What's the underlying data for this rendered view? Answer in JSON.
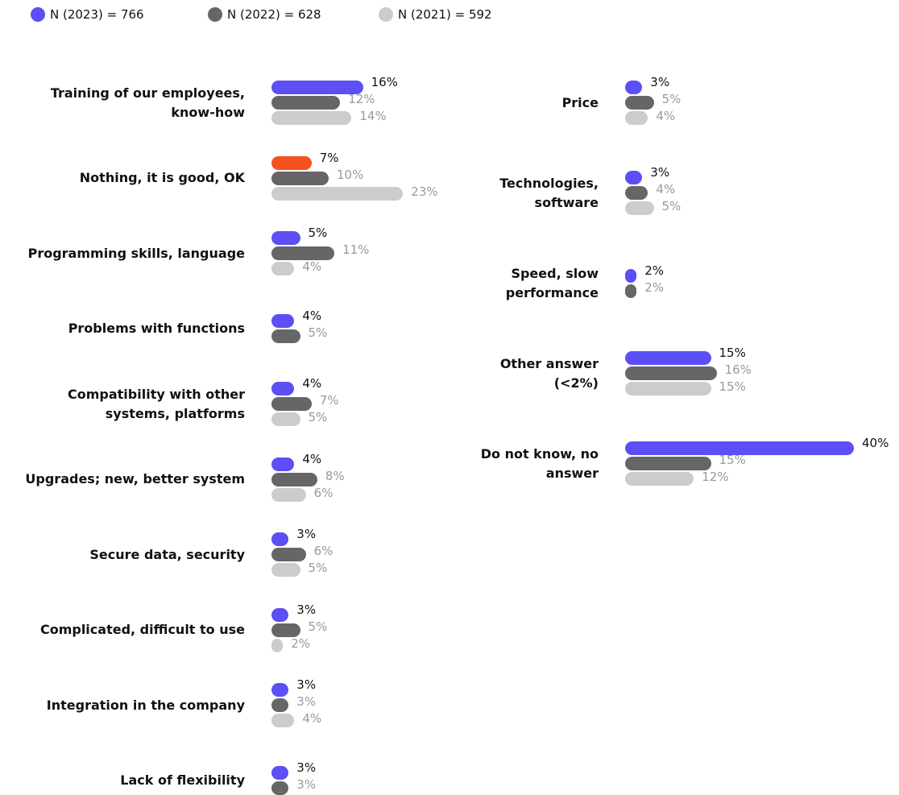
{
  "chart_data": [
    {
      "type": "bar",
      "categories": [
        "Training of our employees,\nknow-how",
        "Nothing, it is good, OK",
        "Programming skills, language",
        "Problems with functions",
        "Compatibility with other\nsystems, platforms",
        "Upgrades; new, better system",
        "Secure data, security",
        "Complicated, difficult to use",
        "Integration in the company",
        "Lack of flexibility"
      ],
      "series": [
        {
          "name": "N (2023) = 766",
          "color": "#5b4ff5",
          "label_color": "#111111",
          "colors": [
            "#5b4ff5",
            "#f4511e",
            "#5b4ff5",
            "#5b4ff5",
            "#5b4ff5",
            "#5b4ff5",
            "#5b4ff5",
            "#5b4ff5",
            "#5b4ff5",
            "#5b4ff5"
          ],
          "values": [
            16,
            7,
            5,
            4,
            4,
            4,
            3,
            3,
            3,
            3
          ],
          "value_labels": [
            "16%",
            "7%",
            "5%",
            "4%",
            "4%",
            "4%",
            "3%",
            "3%",
            "3%",
            "3%"
          ]
        },
        {
          "name": "N (2022) = 628",
          "color": "#666666",
          "label_color": "#999999",
          "values": [
            12,
            10,
            11,
            5,
            7,
            8,
            6,
            5,
            3,
            3
          ],
          "value_labels": [
            "12%",
            "10%",
            "11%",
            "5%",
            "7%",
            "8%",
            "6%",
            "5%",
            "3%",
            "3%"
          ]
        },
        {
          "name": "N (2021) = 592",
          "color": "#cccccc",
          "label_color": "#999999",
          "values": [
            14,
            23,
            4,
            null,
            5,
            6,
            5,
            2,
            4,
            null
          ],
          "value_labels": [
            "14%",
            "23%",
            "4%",
            null,
            "5%",
            "6%",
            "5%",
            "2%",
            "4%",
            null
          ]
        }
      ]
    },
    {
      "type": "bar",
      "categories": [
        "Price",
        "Technologies,\nsoftware",
        "Speed, slow\nperformance",
        "Other answer\n(<2%)",
        "Do not know, no\nanswer"
      ],
      "series": [
        {
          "color": "#5b4ff5",
          "label_color": "#111111",
          "values": [
            3,
            3,
            2,
            15,
            40
          ],
          "value_labels": [
            "3%",
            "3%",
            "2%",
            "15%",
            "40%"
          ]
        },
        {
          "color": "#666666",
          "label_color": "#999999",
          "values": [
            5,
            4,
            2,
            16,
            15
          ],
          "value_labels": [
            "5%",
            "4%",
            "2%",
            "16%",
            "15%"
          ]
        },
        {
          "color": "#cccccc",
          "label_color": "#999999",
          "values": [
            4,
            5,
            null,
            15,
            12
          ],
          "value_labels": [
            "4%",
            "5%",
            null,
            "15%",
            "12%"
          ]
        }
      ]
    }
  ]
}
